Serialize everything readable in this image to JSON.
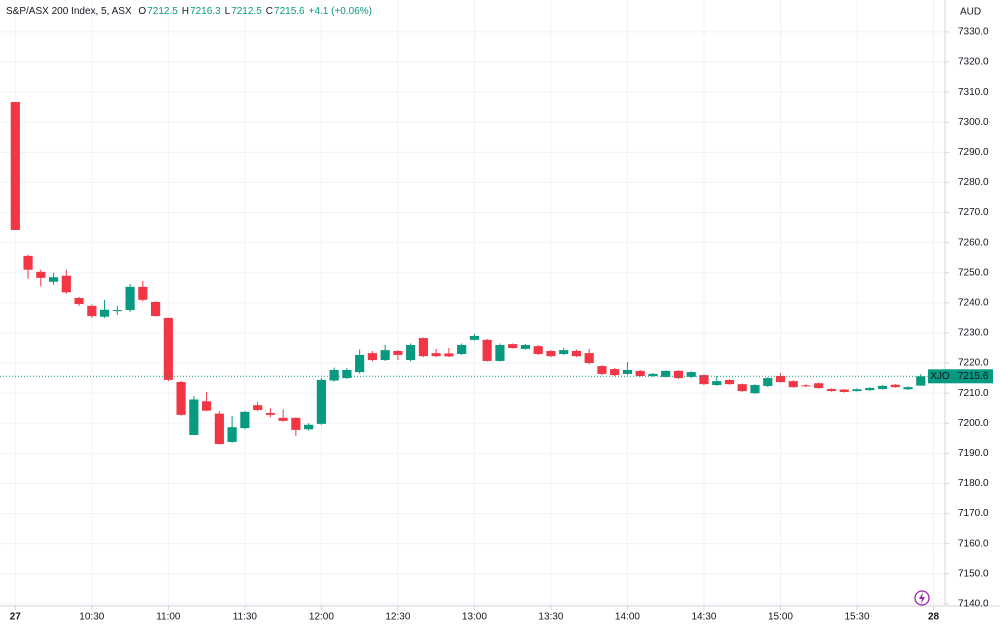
{
  "chart_data": {
    "type": "candlestick",
    "title": "S&P/ASX 200 Index, 5, ASX",
    "ohlc_labels": [
      "O",
      "H",
      "L",
      "C"
    ],
    "change": "+4.1 (+0.06%)",
    "currency": "AUD",
    "symbol": "XJO",
    "up_color": "#089981",
    "down_color": "#f23645",
    "grid": true,
    "open": [
      7306.7,
      7255.6,
      7250.3,
      7247,
      7249,
      7241.6,
      7239,
      7235.4,
      7237.3,
      7237.6,
      7245.3,
      7240.3,
      7235,
      7213.7,
      7196.1,
      7207.3,
      7203.2,
      7193.8,
      7198.4,
      7206,
      7203.4,
      7201.8,
      7201.8,
      7198,
      7199.8,
      7214.2,
      7215,
      7217,
      7223.3,
      7221,
      7224,
      7221,
      7228.3,
      7223.3,
      7223.2,
      7223,
      7227.7,
      7227.7,
      7220.7,
      7226.3,
      7224.7,
      7225.6,
      7224,
      7223,
      7224,
      7223.3,
      7219,
      7218,
      7216.4,
      7217.4,
      7215.7,
      7215.4,
      7217.4,
      7215.4,
      7216,
      7212.7,
      7214.4,
      7213,
      7210,
      7212.4,
      7215.7,
      7214,
      7212.6,
      7213.3,
      7211.4,
      7211.2,
      7210.7,
      7211,
      7211.4,
      7212.8,
      7211.3,
      7212.5
    ],
    "high": [
      7306.7,
      7256,
      7251,
      7250,
      7251,
      7242,
      7239.5,
      7241,
      7239,
      7246.3,
      7247.3,
      7240.5,
      7235,
      7214,
      7209,
      7210.4,
      7204,
      7202.4,
      7204,
      7207,
      7205,
      7204.6,
      7202,
      7200,
      7215,
      7218.5,
      7218.3,
      7224.5,
      7224,
      7226,
      7224.3,
      7226.5,
      7228.5,
      7224.7,
      7225,
      7226.5,
      7229.7,
      7228,
      7226.5,
      7226.5,
      7226.3,
      7226,
      7224.3,
      7225,
      7224.5,
      7224.7,
      7219.3,
      7218.3,
      7220.4,
      7217.7,
      7216.7,
      7217.6,
      7217.6,
      7217.3,
      7216.3,
      7215.7,
      7214.6,
      7213.2,
      7213,
      7215.3,
      7216.7,
      7214.3,
      7213,
      7213.5,
      7211.6,
      7211.4,
      7211.6,
      7212,
      7212.7,
      7213,
      7212.3,
      7216.3
    ],
    "low": [
      7264.2,
      7248,
      7245.5,
      7246,
      7243,
      7239,
      7235,
      7235,
      7236,
      7237,
      7240.5,
      7235.5,
      7214,
      7202.5,
      7196,
      7204,
      7193,
      7193.5,
      7198,
      7204,
      7202,
      7200.5,
      7195.8,
      7197.5,
      7199.5,
      7213.8,
      7214.8,
      7216.5,
      7220.5,
      7220.7,
      7221,
      7220.5,
      7222,
      7222,
      7222,
      7222.7,
      7227.5,
      7220.5,
      7220.5,
      7224.8,
      7224.5,
      7222.7,
      7222,
      7222.7,
      7222,
      7219.6,
      7216,
      7215.7,
      7216,
      7215.5,
      7215.4,
      7215.2,
      7214.8,
      7215,
      7212.7,
      7212.4,
      7212.8,
      7210.4,
      7209.7,
      7212,
      7213.5,
      7211.8,
      7212,
      7211.5,
      7210.5,
      7210.2,
      7210.5,
      7210.8,
      7211.2,
      7211.8,
      7211,
      7212.5
    ],
    "close": [
      7264.2,
      7251,
      7248.3,
      7248.5,
      7243.5,
      7239.6,
      7235.6,
      7237.7,
      7237.6,
      7245.3,
      7241,
      7235.6,
      7214.4,
      7202.8,
      7207.9,
      7204.2,
      7193.1,
      7198.7,
      7203.8,
      7204.4,
      7202.8,
      7200.8,
      7197.8,
      7199.5,
      7214.4,
      7217.7,
      7217.7,
      7222.7,
      7221,
      7224.3,
      7222.7,
      7226,
      7222.3,
      7222.3,
      7222.2,
      7226,
      7229,
      7220.7,
      7226,
      7225,
      7226,
      7223,
      7222.3,
      7224.3,
      7222.3,
      7220,
      7216.4,
      7216,
      7217.7,
      7215.7,
      7216.4,
      7217.4,
      7215,
      7217,
      7213,
      7214,
      7213,
      7210.7,
      7212.7,
      7215,
      7213.7,
      7212,
      7212.3,
      7211.7,
      7210.7,
      7210.4,
      7211.3,
      7211.7,
      7212.4,
      7212,
      7212,
      7215.6
    ],
    "xlim": [
      -1.2,
      72.9
    ],
    "xticks": [
      {
        "value": 0,
        "label": "27"
      },
      {
        "value": 6,
        "label": "10:30"
      },
      {
        "value": 12,
        "label": "11:00"
      },
      {
        "value": 18,
        "label": "11:30"
      },
      {
        "value": 24,
        "label": "12:00"
      },
      {
        "value": 30,
        "label": "12:30"
      },
      {
        "value": 36,
        "label": "13:00"
      },
      {
        "value": 42,
        "label": "13:30"
      },
      {
        "value": 48,
        "label": "14:00"
      },
      {
        "value": 54,
        "label": "14:30"
      },
      {
        "value": 60,
        "label": "15:00"
      },
      {
        "value": 66,
        "label": "15:30"
      },
      {
        "value": 72,
        "label": "28"
      }
    ],
    "ylim": [
      7139.3,
      7340.6
    ],
    "yticks": [
      {
        "value": 7140,
        "label": "7140.0"
      },
      {
        "value": 7150,
        "label": "7150.0"
      },
      {
        "value": 7160,
        "label": "7160.0"
      },
      {
        "value": 7170,
        "label": "7170.0"
      },
      {
        "value": 7180,
        "label": "7180.0"
      },
      {
        "value": 7190,
        "label": "7190.0"
      },
      {
        "value": 7200,
        "label": "7200.0"
      },
      {
        "value": 7210,
        "label": "7210.0"
      },
      {
        "value": 7220,
        "label": "7220.0"
      },
      {
        "value": 7230,
        "label": "7230.0"
      },
      {
        "value": 7240,
        "label": "7240.0"
      },
      {
        "value": 7250,
        "label": "7250.0"
      },
      {
        "value": 7260,
        "label": "7260.0"
      },
      {
        "value": 7270,
        "label": "7270.0"
      },
      {
        "value": 7280,
        "label": "7280.0"
      },
      {
        "value": 7290,
        "label": "7290.0"
      },
      {
        "value": 7300,
        "label": "7300.0"
      },
      {
        "value": 7310,
        "label": "7310.0"
      },
      {
        "value": 7320,
        "label": "7320.0"
      },
      {
        "value": 7330,
        "label": "7330.0"
      }
    ]
  }
}
